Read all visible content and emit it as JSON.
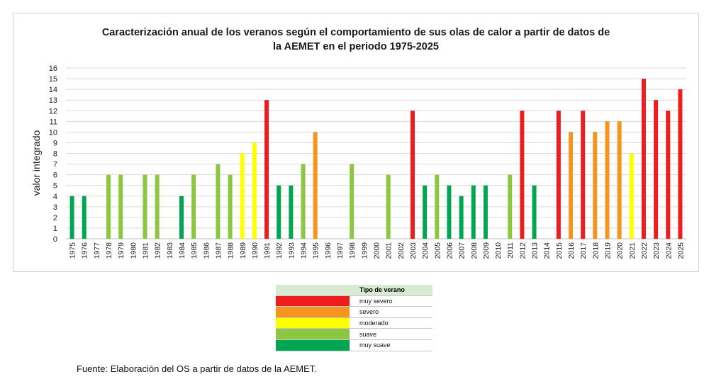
{
  "chart_data": {
    "type": "bar",
    "title_lines": [
      "Caracterización anual de los veranos según el comportamiento de sus olas de calor a partir de datos de",
      "la AEMET en el periodo 1975-2025"
    ],
    "ylabel": "valor integrado",
    "ylim": [
      0,
      16
    ],
    "yticks": [
      0,
      1,
      2,
      3,
      4,
      5,
      6,
      7,
      8,
      9,
      10,
      11,
      12,
      13,
      14,
      15,
      16
    ],
    "grid": true,
    "categories": [
      "1975",
      "1976",
      "1977",
      "1978",
      "1979",
      "1980",
      "1981",
      "1982",
      "1983",
      "1984",
      "1985",
      "1986",
      "1987",
      "1988",
      "1989",
      "1990",
      "1991",
      "1992",
      "1993",
      "1994",
      "1995",
      "1996",
      "1997",
      "1998",
      "1999",
      "2000",
      "2001",
      "2002",
      "2003",
      "2004",
      "2005",
      "2006",
      "2007",
      "2008",
      "2009",
      "2010",
      "2011",
      "2012",
      "2013",
      "2014",
      "2015",
      "2016",
      "2017",
      "2018",
      "2019",
      "2020",
      "2021",
      "2022",
      "2023",
      "2024",
      "2025"
    ],
    "values": [
      4,
      4,
      0,
      6,
      6,
      0,
      6,
      6,
      0,
      4,
      6,
      0,
      7,
      6,
      8,
      9,
      13,
      5,
      5,
      7,
      10,
      0,
      0,
      7,
      0,
      0,
      6,
      0,
      12,
      5,
      6,
      5,
      4,
      5,
      5,
      0,
      6,
      12,
      5,
      0,
      12,
      10,
      12,
      10,
      11,
      11,
      8,
      15,
      13,
      12,
      14
    ],
    "classes": [
      "muy_suave",
      "muy_suave",
      "",
      "suave",
      "suave",
      "",
      "suave",
      "suave",
      "",
      "muy_suave",
      "suave",
      "",
      "suave",
      "suave",
      "moderado",
      "moderado",
      "muy_severo",
      "muy_suave",
      "muy_suave",
      "suave",
      "severo",
      "",
      "",
      "suave",
      "",
      "",
      "suave",
      "",
      "muy_severo",
      "muy_suave",
      "suave",
      "muy_suave",
      "muy_suave",
      "muy_suave",
      "muy_suave",
      "",
      "suave",
      "muy_severo",
      "muy_suave",
      "",
      "muy_severo",
      "severo",
      "muy_severo",
      "severo",
      "severo",
      "severo",
      "moderado",
      "muy_severo",
      "muy_severo",
      "muy_severo",
      "muy_severo"
    ],
    "colors": {
      "muy_severo": "#ee1c1c",
      "severo": "#f7941d",
      "moderado": "#ffff00",
      "suave": "#8dc63f",
      "muy_suave": "#00a651"
    },
    "legend": {
      "title": "Tipo de verano",
      "items": [
        {
          "key": "muy_severo",
          "label": "muy severo"
        },
        {
          "key": "severo",
          "label": "severo"
        },
        {
          "key": "moderado",
          "label": "moderado"
        },
        {
          "key": "suave",
          "label": "suave"
        },
        {
          "key": "muy_suave",
          "label": "muy suave"
        }
      ]
    }
  },
  "source_note": "Fuente: Elaboración del OS a partir de datos de la AEMET."
}
